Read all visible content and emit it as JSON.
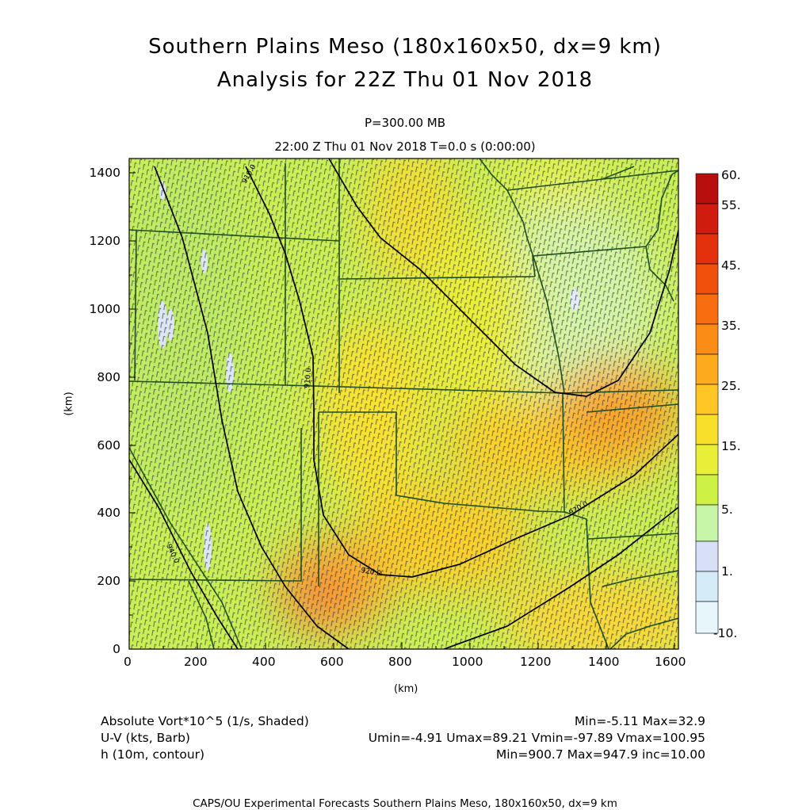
{
  "header": {
    "title_line1": "Southern Plains Meso (180x160x50, dx=9 km)",
    "title_line2": "Analysis for 22Z Thu 01 Nov 2018",
    "level": "P=300.00 MB",
    "valid_time": "22:00 Z Thu 01 Nov 2018    T=0.0 s (0:00:00)"
  },
  "axes": {
    "x_label": "(km)",
    "y_label": "(km)",
    "x_ticks": [
      "0",
      "200",
      "400",
      "600",
      "800",
      "1000",
      "1200",
      "1400",
      "1600"
    ],
    "y_ticks": [
      "0",
      "200",
      "400",
      "600",
      "800",
      "1000",
      "1200",
      "1400"
    ]
  },
  "colorbar": {
    "labels": [
      "60.",
      "55.",
      "45.",
      "35.",
      "25.",
      "15.",
      "5.",
      "1.",
      "-10."
    ],
    "colors": [
      "#b80e0e",
      "#cf1c0e",
      "#e2310c",
      "#f04f0c",
      "#f76d10",
      "#fb8d17",
      "#feaa1d",
      "#ffc625",
      "#f7df2a",
      "#e8ef36",
      "#cdf145",
      "#b3ee5a",
      "#c7f5a8",
      "#d7e0f6",
      "#d6ebf8",
      "#e6f6fb"
    ]
  },
  "contours": {
    "labels": [
      "910.0",
      "920.0",
      "940.0",
      "930.0"
    ]
  },
  "legend": {
    "field1_name": "Absolute Vort*10^5 (1/s, Shaded)",
    "field1_stats": "Min=-5.11 Max=32.9",
    "field2_name": "U-V (kts, Barb)",
    "field2_stats": "Umin=-4.91 Umax=89.21 Vmin=-97.89 Vmax=100.95",
    "field3_name": "h (10m, contour)",
    "field3_stats": "Min=900.7 Max=947.9 inc=10.00"
  },
  "footer": "CAPS/OU Experimental Forecasts  Southern Plains Meso, 180x160x50, dx=9 km"
}
